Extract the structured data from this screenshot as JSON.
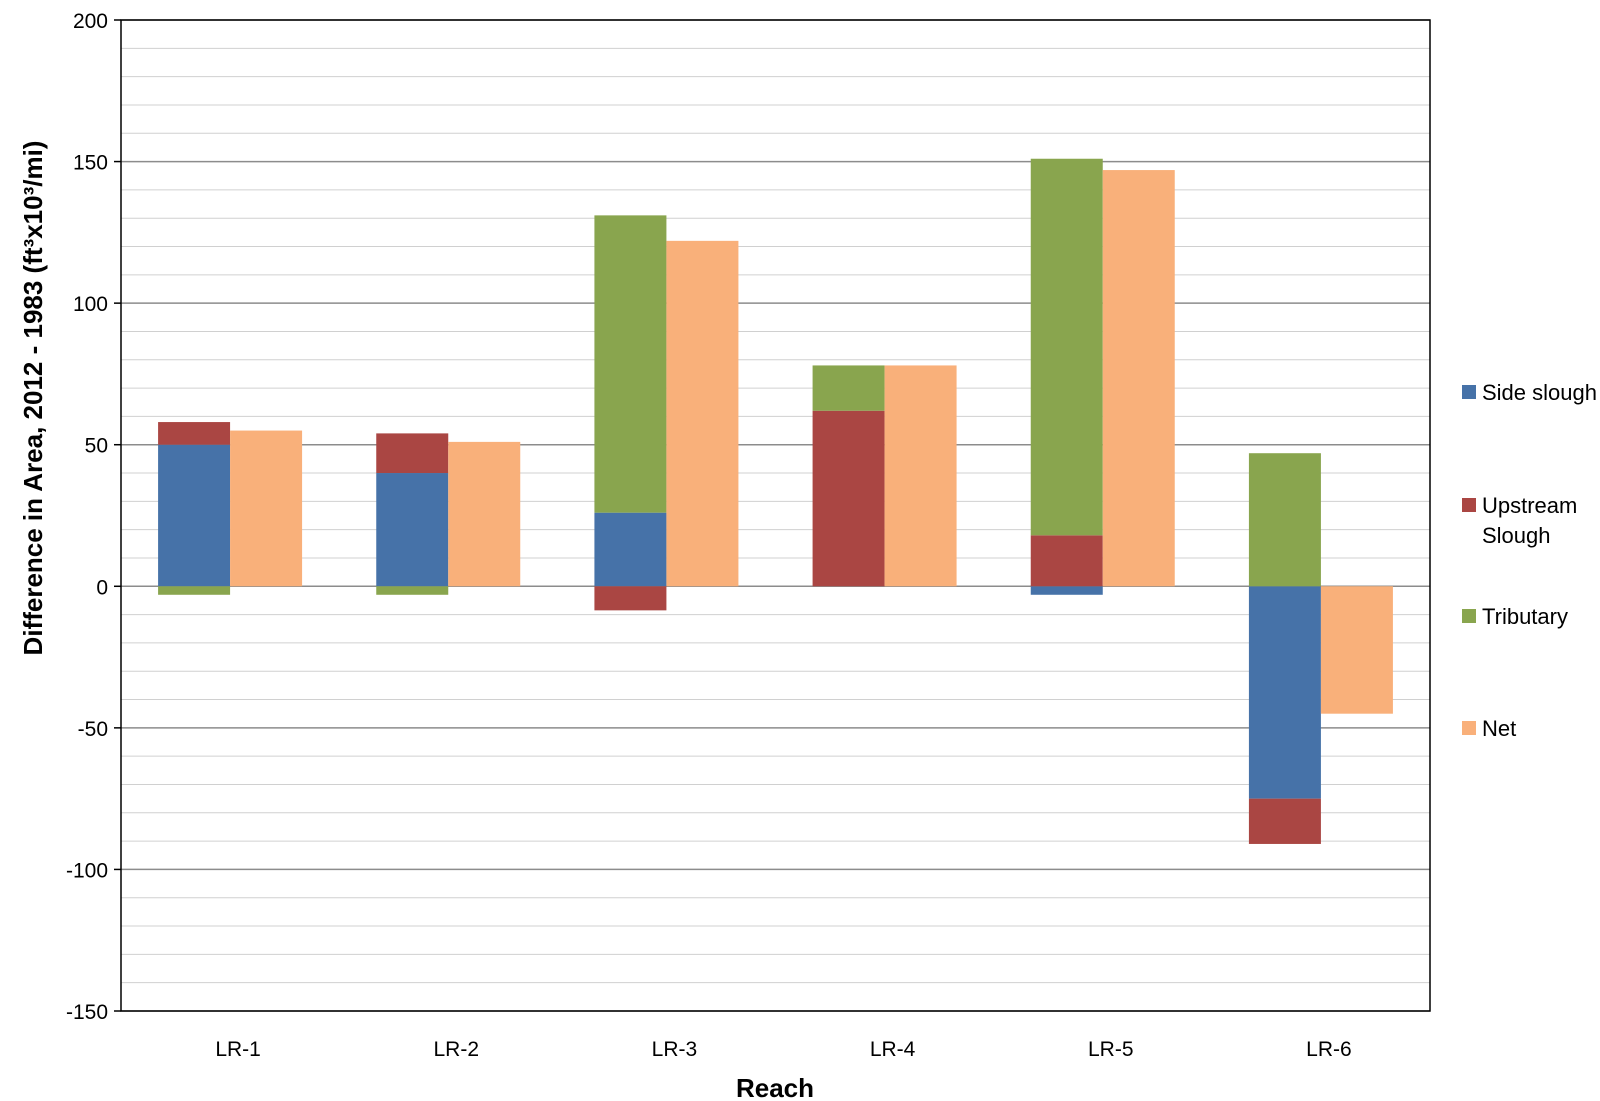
{
  "chart_data": {
    "type": "bar",
    "stacked": true,
    "xlabel": "Reach",
    "ylabel": "Difference in Area, 2012 - 1983 (ft³x10³/mi)",
    "ylim": [
      -150,
      200
    ],
    "yticks": [
      -150,
      -100,
      -50,
      0,
      50,
      100,
      150,
      200
    ],
    "minor_grid_step": 10,
    "grid": true,
    "legend_position": "right",
    "categories": [
      "LR-1",
      "LR-2",
      "LR-3",
      "LR-4",
      "LR-5",
      "LR-6"
    ],
    "stacked_bar": {
      "series": [
        {
          "name": "Side slough",
          "color": "#4672A8",
          "values": [
            50,
            40,
            26,
            0,
            -3,
            -75
          ]
        },
        {
          "name": "Upstream Slough",
          "color": "#AA4643",
          "values": [
            8,
            14,
            -8.5,
            62,
            18,
            -16
          ]
        },
        {
          "name": "Tributary",
          "color": "#89A54E",
          "values": [
            -3,
            -3,
            105,
            16,
            133,
            47
          ]
        }
      ]
    },
    "net_bar": {
      "name": "Net",
      "color": "#F9B07A",
      "values": [
        55,
        51,
        122,
        78,
        147,
        -45
      ]
    },
    "legend": [
      {
        "label": "Side slough",
        "color": "#4672A8"
      },
      {
        "label": "Upstream\nSlough",
        "color": "#AA4643"
      },
      {
        "label": "Tributary",
        "color": "#89A54E"
      },
      {
        "label": "Net",
        "color": "#F9B07A"
      }
    ]
  }
}
